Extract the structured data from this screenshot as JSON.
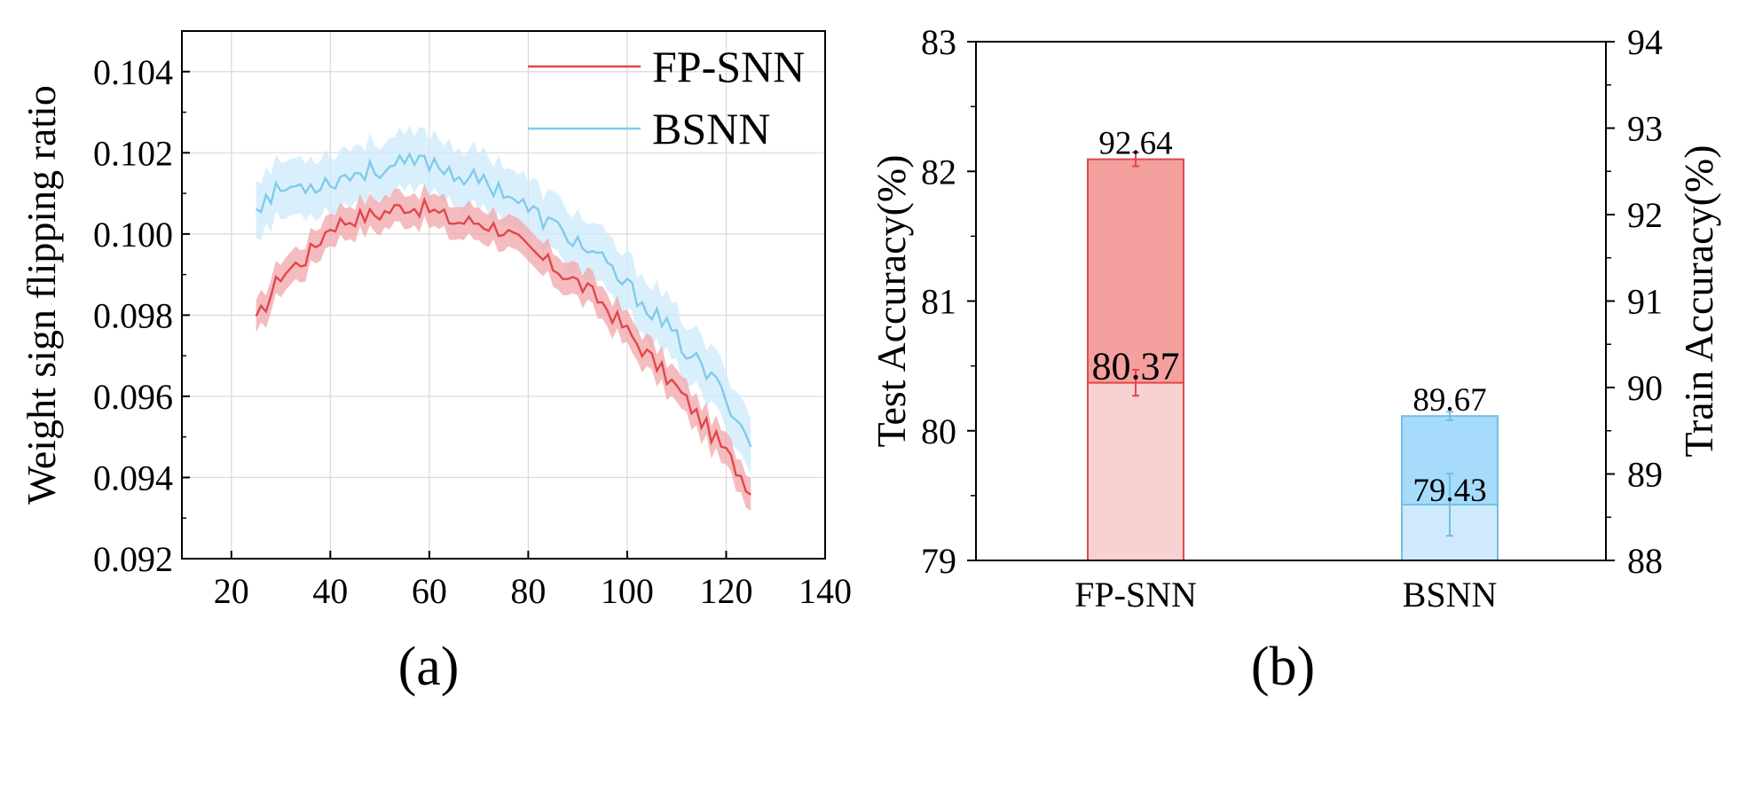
{
  "colors": {
    "fp_line": "#e0474c",
    "fp_band": "#f2a6aa",
    "bsnn_line": "#7fcbea",
    "bsnn_band": "#cde9fb",
    "fp_train_bar": "#f4a09e",
    "fp_test_bar": "#f8d2d1",
    "fp_bar_stroke": "#e0474c",
    "bsnn_train_bar": "#a6dbfb",
    "bsnn_test_bar": "#cfeafc",
    "bsnn_bar_stroke": "#72bfe3"
  },
  "panel_labels": [
    "(a)",
    "(b)"
  ],
  "chart_data": [
    {
      "type": "line",
      "title": "",
      "xlabel": "",
      "ylabel": "Weight sign flipping ratio",
      "xlim": [
        10,
        140
      ],
      "ylim": [
        0.092,
        0.105
      ],
      "xticks": [
        20,
        40,
        60,
        80,
        100,
        120,
        140
      ],
      "yticks": [
        0.092,
        0.094,
        0.096,
        0.098,
        0.1,
        0.102,
        0.104
      ],
      "ytick_labels": [
        "0.092",
        "0.094",
        "0.096",
        "0.098",
        "0.100",
        "0.102",
        "0.104"
      ],
      "grid": true,
      "legend": "top-right",
      "x": [
        25,
        30,
        35,
        40,
        45,
        50,
        55,
        60,
        65,
        70,
        75,
        80,
        85,
        90,
        95,
        100,
        105,
        110,
        115,
        120,
        125
      ],
      "series": [
        {
          "name": "FP-SNN",
          "values": [
            0.0978,
            0.099,
            0.0994,
            0.1002,
            0.1004,
            0.1005,
            0.1007,
            0.1006,
            0.1003,
            0.1003,
            0.1001,
            0.0996,
            0.0992,
            0.0988,
            0.0983,
            0.0976,
            0.0969,
            0.0962,
            0.0954,
            0.0946,
            0.0937
          ],
          "band": 0.0004
        },
        {
          "name": "BSNN",
          "values": [
            0.1007,
            0.1011,
            0.1012,
            0.1013,
            0.1015,
            0.1016,
            0.1017,
            0.1018,
            0.1015,
            0.1013,
            0.1011,
            0.1006,
            0.1002,
            0.0998,
            0.0993,
            0.0987,
            0.0981,
            0.0974,
            0.0967,
            0.096,
            0.0948
          ],
          "band": 0.0007
        }
      ]
    },
    {
      "type": "bar",
      "title": "",
      "xlabel": "",
      "ylabel": "Test Accuracy(%)",
      "y2label": "Train Accuracy(%)",
      "ylim": [
        79,
        83
      ],
      "y2lim": [
        88,
        94
      ],
      "yticks": [
        79,
        80,
        81,
        82,
        83
      ],
      "y2ticks": [
        88,
        89,
        90,
        91,
        92,
        93,
        94
      ],
      "categories": [
        "FP-SNN",
        "BSNN"
      ],
      "series": [
        {
          "name": "Train Accuracy",
          "axis": "right",
          "values": [
            92.64,
            89.67
          ],
          "labels": [
            "92.64",
            "89.67"
          ],
          "errors": [
            0.08,
            0.05
          ]
        },
        {
          "name": "Test Accuracy",
          "axis": "left",
          "values": [
            80.37,
            79.43
          ],
          "labels": [
            "80.37",
            "79.43"
          ],
          "errors": [
            0.1,
            0.24
          ]
        }
      ]
    }
  ]
}
